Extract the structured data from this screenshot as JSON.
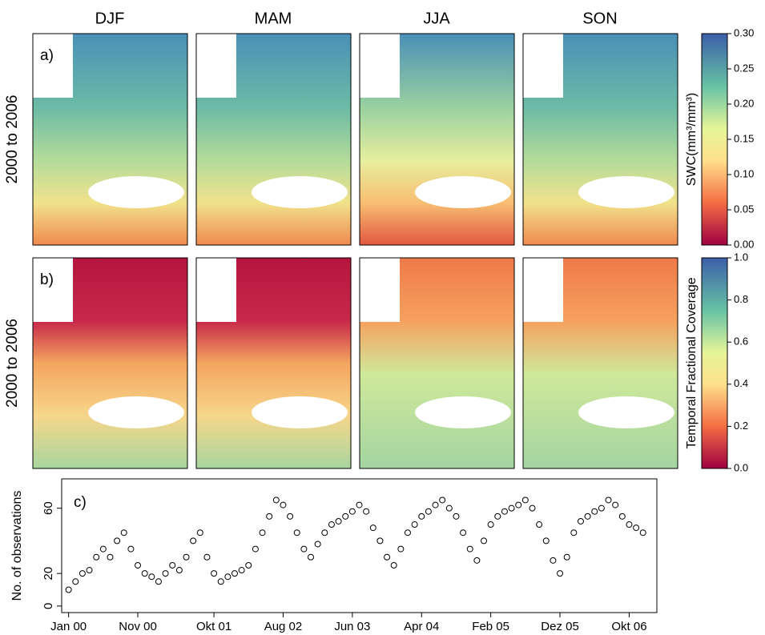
{
  "panels": {
    "columns": [
      "DJF",
      "MAM",
      "JJA",
      "SON"
    ],
    "rows": [
      {
        "letter": "a)",
        "label": "2000 to 2006"
      },
      {
        "letter": "b)",
        "label": "2000 to 2006"
      }
    ]
  },
  "colorbars": [
    {
      "label": "SWC(mm³/mm³)",
      "lim": [
        0,
        0.3
      ],
      "ticks": [
        {
          "value": 0,
          "label": "0.00"
        },
        {
          "value": 0.05,
          "label": "0.05"
        },
        {
          "value": 0.1,
          "label": "0.10"
        },
        {
          "value": 0.15,
          "label": "0.15"
        },
        {
          "value": 0.2,
          "label": "0.20"
        },
        {
          "value": 0.25,
          "label": "0.25"
        },
        {
          "value": 0.3,
          "label": "0.30"
        }
      ]
    },
    {
      "label": "Temporal Fractional Coverage",
      "lim": [
        0,
        1
      ],
      "ticks": [
        {
          "value": 0,
          "label": "0.0"
        },
        0.2,
        0.4,
        0.6,
        0.8,
        {
          "value": 1,
          "label": "1.0"
        }
      ]
    }
  ],
  "chart_data": {
    "type": "scatter",
    "letter": "c)",
    "y_label": "No. of observations",
    "color": "#000000",
    "x": [
      "2000-01",
      "2000-02",
      "2000-03",
      "2000-04",
      "2000-05",
      "2000-06",
      "2000-07",
      "2000-08",
      "2000-09",
      "2000-10",
      "2000-11",
      "2000-12",
      "2001-01",
      "2001-02",
      "2001-03",
      "2001-04",
      "2001-05",
      "2001-06",
      "2001-07",
      "2001-08",
      "2001-09",
      "2001-10",
      "2001-11",
      "2001-12",
      "2002-01",
      "2002-02",
      "2002-03",
      "2002-04",
      "2002-05",
      "2002-06",
      "2002-07",
      "2002-08",
      "2002-09",
      "2002-10",
      "2002-11",
      "2002-12",
      "2003-01",
      "2003-02",
      "2003-03",
      "2003-04",
      "2003-05",
      "2003-06",
      "2003-07",
      "2003-08",
      "2003-09",
      "2003-10",
      "2003-11",
      "2003-12",
      "2004-01",
      "2004-02",
      "2004-03",
      "2004-04",
      "2004-05",
      "2004-06",
      "2004-07",
      "2004-08",
      "2004-09",
      "2004-10",
      "2004-11",
      "2004-12",
      "2005-01",
      "2005-02",
      "2005-03",
      "2005-04",
      "2005-05",
      "2005-06",
      "2005-07",
      "2005-08",
      "2005-09",
      "2005-10",
      "2005-11",
      "2005-12",
      "2006-01",
      "2006-02",
      "2006-03",
      "2006-04",
      "2006-05",
      "2006-06",
      "2006-07",
      "2006-08",
      "2006-09",
      "2006-10",
      "2006-11",
      "2006-12"
    ],
    "values": [
      10,
      15,
      20,
      22,
      30,
      35,
      30,
      40,
      45,
      35,
      25,
      20,
      18,
      15,
      20,
      25,
      22,
      30,
      40,
      45,
      30,
      20,
      15,
      18,
      20,
      22,
      25,
      35,
      45,
      55,
      65,
      62,
      55,
      45,
      35,
      30,
      38,
      45,
      50,
      52,
      55,
      58,
      62,
      58,
      48,
      40,
      30,
      25,
      35,
      45,
      50,
      55,
      58,
      62,
      65,
      60,
      55,
      45,
      35,
      28,
      40,
      50,
      55,
      58,
      60,
      62,
      65,
      60,
      50,
      40,
      28,
      20,
      30,
      45,
      52,
      55,
      58,
      60,
      65,
      62,
      55,
      50,
      48,
      45
    ],
    "xlim": [
      "1999-12",
      "2007-02"
    ],
    "xticks": [
      {
        "value": "2000-01",
        "label": "Jan 00"
      },
      {
        "value": "2000-11",
        "label": "Nov 00"
      },
      {
        "value": "2001-10",
        "label": "Okt 01"
      },
      {
        "value": "2002-08",
        "label": "Aug 02"
      },
      {
        "value": "2003-06",
        "label": "Jun 03"
      },
      {
        "value": "2004-04",
        "label": "Apr 04"
      },
      {
        "value": "2005-02",
        "label": "Feb 05"
      },
      {
        "value": "2005-12",
        "label": "Dez 05"
      },
      {
        "value": "2006-10",
        "label": "Okt 06"
      }
    ],
    "ylim": [
      -4,
      78
    ],
    "yticks": [
      0,
      20,
      60
    ]
  }
}
